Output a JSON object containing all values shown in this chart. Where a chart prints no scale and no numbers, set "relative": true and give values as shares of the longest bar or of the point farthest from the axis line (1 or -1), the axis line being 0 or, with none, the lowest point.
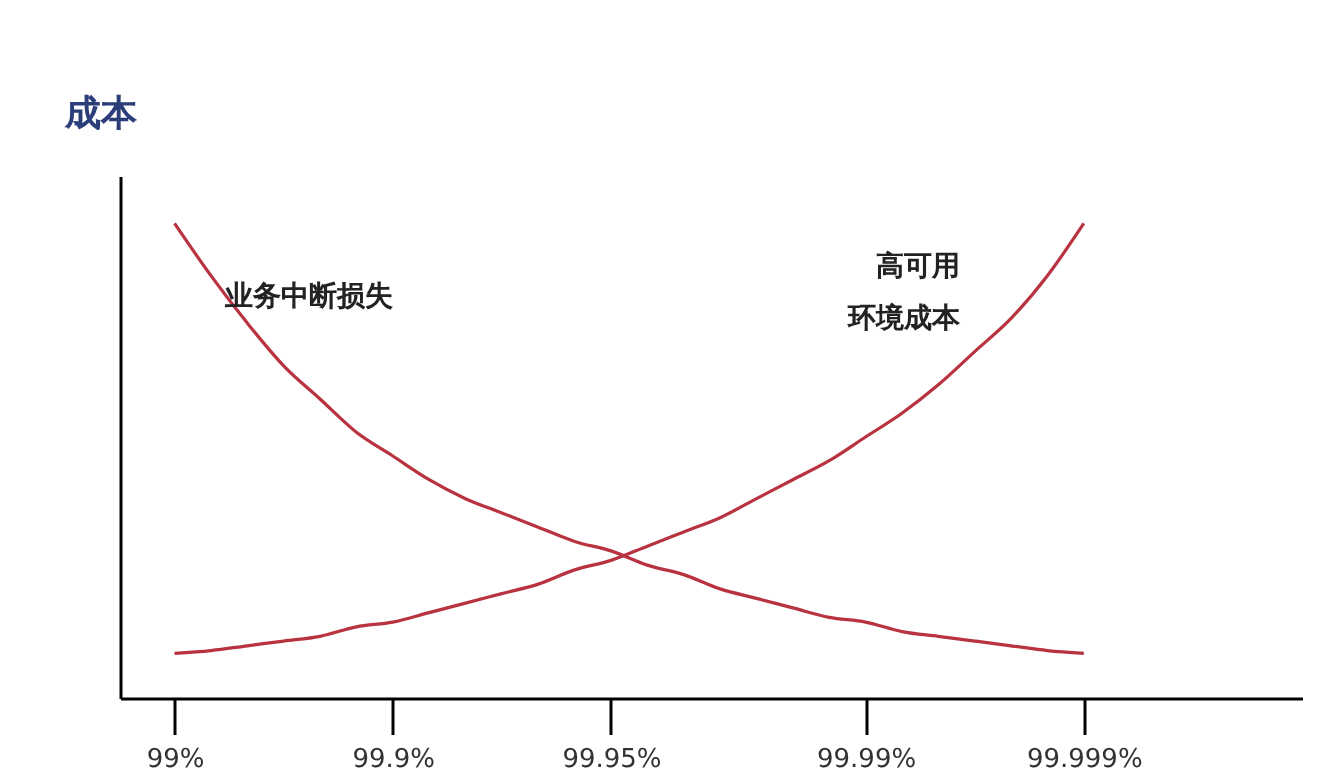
{
  "chart_data": {
    "type": "line",
    "relative": true,
    "ylabel": "成本",
    "grid": false,
    "marker": "none",
    "line_style": "solid",
    "categories": [
      "99%",
      null,
      null,
      null,
      null,
      null,
      "99.9%",
      null,
      null,
      null,
      null,
      null,
      "99.95%",
      null,
      null,
      null,
      null,
      null,
      null,
      "99.99%",
      null,
      null,
      null,
      null,
      null,
      "99.999%"
    ],
    "series": [
      {
        "name": "业务中断损失",
        "color": "#b8323f",
        "values": [
          1.0,
          0.89,
          0.79,
          0.7,
          0.63,
          0.56,
          0.51,
          0.46,
          0.42,
          0.39,
          0.36,
          0.33,
          0.31,
          0.28,
          0.26,
          0.23,
          0.21,
          0.19,
          0.17,
          0.16,
          0.14,
          0.13,
          0.12,
          0.11,
          0.1,
          0.094
        ]
      },
      {
        "name": "高可用环境成本",
        "color": "#b8323f",
        "values": [
          0.094,
          0.1,
          0.11,
          0.12,
          0.13,
          0.15,
          0.16,
          0.18,
          0.2,
          0.22,
          0.24,
          0.27,
          0.29,
          0.32,
          0.35,
          0.38,
          0.42,
          0.46,
          0.5,
          0.55,
          0.6,
          0.66,
          0.73,
          0.8,
          0.89,
          1.0
        ]
      }
    ]
  }
}
